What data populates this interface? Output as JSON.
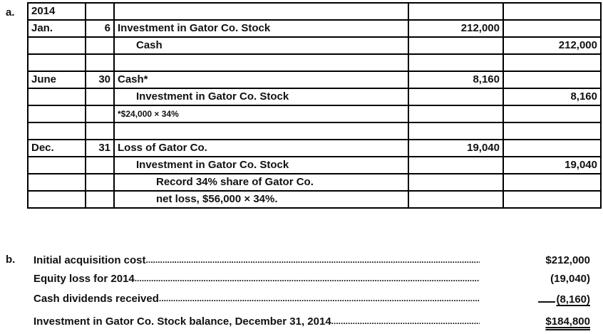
{
  "part_a": {
    "label": "a.",
    "journal": {
      "rows": [
        {
          "month": "2014",
          "day": "",
          "desc": "",
          "indent": 0,
          "debit": "",
          "credit": ""
        },
        {
          "month": "Jan.",
          "day": "6",
          "desc": "Investment in Gator Co. Stock",
          "indent": 0,
          "debit": "212,000",
          "credit": ""
        },
        {
          "month": "",
          "day": "",
          "desc": "Cash",
          "indent": 1,
          "debit": "",
          "credit": "212,000"
        },
        {
          "month": "",
          "day": "",
          "desc": "",
          "indent": 0,
          "debit": "",
          "credit": ""
        },
        {
          "month": "June",
          "day": "30",
          "desc": "Cash*",
          "indent": 0,
          "debit": "8,160",
          "credit": ""
        },
        {
          "month": "",
          "day": "",
          "desc": "Investment in Gator Co. Stock",
          "indent": 1,
          "debit": "",
          "credit": "8,160"
        },
        {
          "month": "",
          "day": "",
          "desc": "*$24,000 × 34%",
          "indent": 0,
          "note": true,
          "debit": "",
          "credit": ""
        },
        {
          "month": "",
          "day": "",
          "desc": "",
          "indent": 0,
          "debit": "",
          "credit": ""
        },
        {
          "month": "Dec.",
          "day": "31",
          "desc": "Loss of Gator Co.",
          "indent": 0,
          "debit": "19,040",
          "credit": ""
        },
        {
          "month": "",
          "day": "",
          "desc": "Investment in Gator Co. Stock",
          "indent": 1,
          "debit": "",
          "credit": "19,040"
        },
        {
          "month": "",
          "day": "",
          "desc": "Record 34% share of Gator Co.",
          "indent": 2,
          "debit": "",
          "credit": ""
        },
        {
          "month": "",
          "day": "",
          "desc": "net loss, $56,000 × 34%.",
          "indent": 2,
          "debit": "",
          "credit": ""
        }
      ]
    }
  },
  "part_b": {
    "label": "b.",
    "leader": "................................................................................................................................................................",
    "lines": [
      {
        "label": "Initial acquisition cost",
        "value": "$212,000",
        "style": "plain"
      },
      {
        "label": "Equity loss for 2014",
        "value": "(19,040)",
        "style": "plain"
      },
      {
        "label": "Cash dividends received",
        "value": "(8,160)",
        "style": "single-underline"
      },
      {
        "label": "Investment in Gator Co. Stock balance, December 31, 2014",
        "value": "$184,800",
        "style": "double-underline"
      }
    ]
  }
}
